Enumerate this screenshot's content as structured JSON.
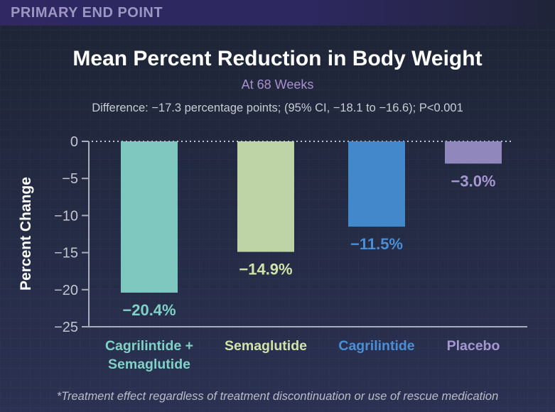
{
  "header": {
    "label": "PRIMARY END POINT"
  },
  "chart_data": {
    "type": "bar",
    "title": "Mean Percent Reduction in Body Weight",
    "subtitle": "At 68 Weeks",
    "annotation": "Difference: −17.3 percentage points; (95% CI, −18.1 to −16.6); P<0.001",
    "xlabel": "",
    "ylabel": "Percent Change",
    "ylim": [
      -25,
      0
    ],
    "yticks": [
      0,
      -5,
      -10,
      -15,
      -20,
      -25
    ],
    "ytick_labels": [
      "0",
      "−5",
      "−10",
      "−15",
      "−20",
      "−25"
    ],
    "grid": false,
    "zero_line": "dotted",
    "categories": [
      "Cagrilintide +\nSemaglutide",
      "Semaglutide",
      "Cagrilintide",
      "Placebo"
    ],
    "values": [
      -20.4,
      -14.9,
      -11.5,
      -3.0
    ],
    "data_labels": [
      "−20.4%",
      "−14.9%",
      "−11.5%",
      "−3.0%"
    ],
    "colors": [
      "#7ec8c0",
      "#bfd4a6",
      "#4488cc",
      "#9088bd"
    ],
    "label_colors": [
      "#7fd3c6",
      "#d2e3a7",
      "#4a8fd6",
      "#a597d3"
    ]
  },
  "footnote": "*Treatment effect regardless of treatment discontinuation or use of rescue medication"
}
